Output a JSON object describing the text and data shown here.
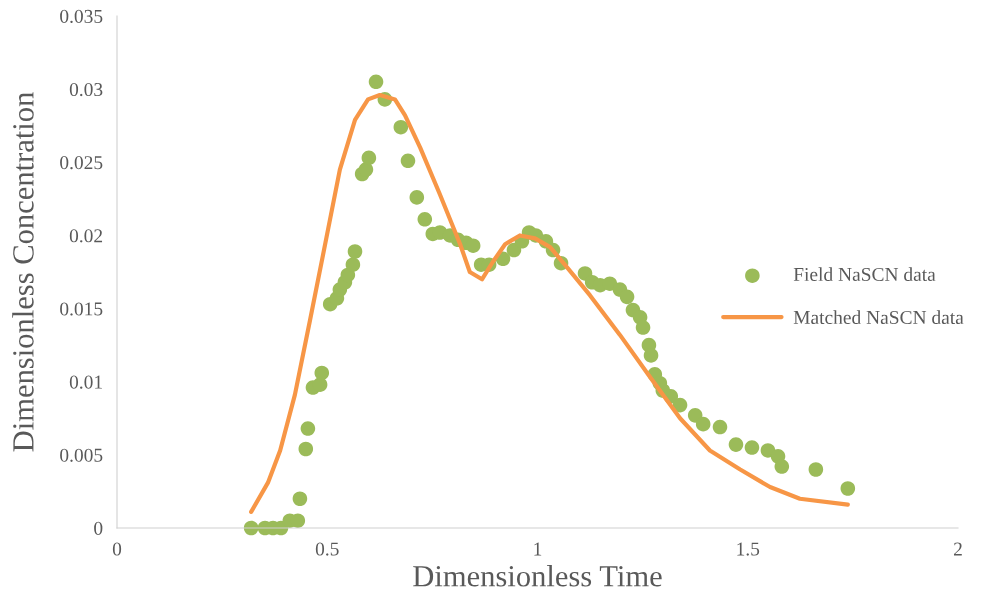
{
  "chart_data": {
    "type": "line",
    "xlabel": "Dimensionless Time",
    "ylabel": "Dimensionless Concentration",
    "xlim": [
      0,
      2
    ],
    "xticks": [
      0,
      0.5,
      1,
      1.5,
      2
    ],
    "ylim": [
      0,
      0.035
    ],
    "yticks": [
      0,
      0.005,
      0.01,
      0.015,
      0.02,
      0.025,
      0.03,
      0.035
    ],
    "grid": false,
    "legend": "right",
    "series": [
      {
        "name": "Field NaSCN data",
        "type": "scatter",
        "marker": "circle",
        "color": "#9bbb59",
        "x": [
          0.319,
          0.352,
          0.371,
          0.39,
          0.411,
          0.43,
          0.435,
          0.449,
          0.454,
          0.466,
          0.483,
          0.487,
          0.507,
          0.523,
          0.53,
          0.542,
          0.549,
          0.561,
          0.566,
          0.583,
          0.592,
          0.599,
          0.616,
          0.637,
          0.675,
          0.692,
          0.713,
          0.732,
          0.751,
          0.768,
          0.792,
          0.811,
          0.83,
          0.847,
          0.866,
          0.885,
          0.918,
          0.944,
          0.963,
          0.98,
          0.996,
          1.02,
          1.037,
          1.056,
          1.113,
          1.13,
          1.149,
          1.172,
          1.196,
          1.213,
          1.227,
          1.244,
          1.251,
          1.265,
          1.27,
          1.279,
          1.291,
          1.298,
          1.317,
          1.339,
          1.375,
          1.394,
          1.434,
          1.472,
          1.51,
          1.548,
          1.572,
          1.581,
          1.662,
          1.738
        ],
        "values": [
          0,
          0,
          0,
          0,
          0.0005,
          0.0005,
          0.002,
          0.0054,
          0.0068,
          0.0096,
          0.0098,
          0.0106,
          0.0153,
          0.0157,
          0.0163,
          0.0168,
          0.0173,
          0.018,
          0.0189,
          0.0242,
          0.0245,
          0.0253,
          0.0305,
          0.0293,
          0.0274,
          0.0251,
          0.0226,
          0.0211,
          0.0201,
          0.0202,
          0.02,
          0.0197,
          0.0195,
          0.0193,
          0.018,
          0.018,
          0.0184,
          0.019,
          0.0196,
          0.0202,
          0.02,
          0.0196,
          0.019,
          0.0181,
          0.0174,
          0.0168,
          0.0166,
          0.0167,
          0.0163,
          0.0158,
          0.0149,
          0.0144,
          0.0137,
          0.0125,
          0.0118,
          0.0105,
          0.0099,
          0.0094,
          0.009,
          0.0084,
          0.0077,
          0.0071,
          0.0069,
          0.0057,
          0.0055,
          0.0053,
          0.0049,
          0.0042,
          0.004,
          0.0027
        ]
      },
      {
        "name": "Matched NaSCN data",
        "color": "#f79646",
        "x": [
          0.319,
          0.359,
          0.388,
          0.423,
          0.459,
          0.495,
          0.53,
          0.566,
          0.597,
          0.625,
          0.661,
          0.685,
          0.721,
          0.768,
          0.816,
          0.839,
          0.868,
          0.894,
          0.923,
          0.958,
          0.994,
          1.03,
          1.065,
          1.125,
          1.196,
          1.268,
          1.339,
          1.41,
          1.482,
          1.553,
          1.624,
          1.738
        ],
        "values": [
          0.0011,
          0.0031,
          0.0053,
          0.0091,
          0.0142,
          0.0194,
          0.0245,
          0.0279,
          0.0293,
          0.0296,
          0.0293,
          0.0282,
          0.026,
          0.0228,
          0.0194,
          0.0175,
          0.017,
          0.0182,
          0.0194,
          0.02,
          0.0198,
          0.0192,
          0.018,
          0.0159,
          0.0132,
          0.0103,
          0.0075,
          0.0053,
          0.004,
          0.0028,
          0.002,
          0.0016
        ]
      }
    ]
  }
}
